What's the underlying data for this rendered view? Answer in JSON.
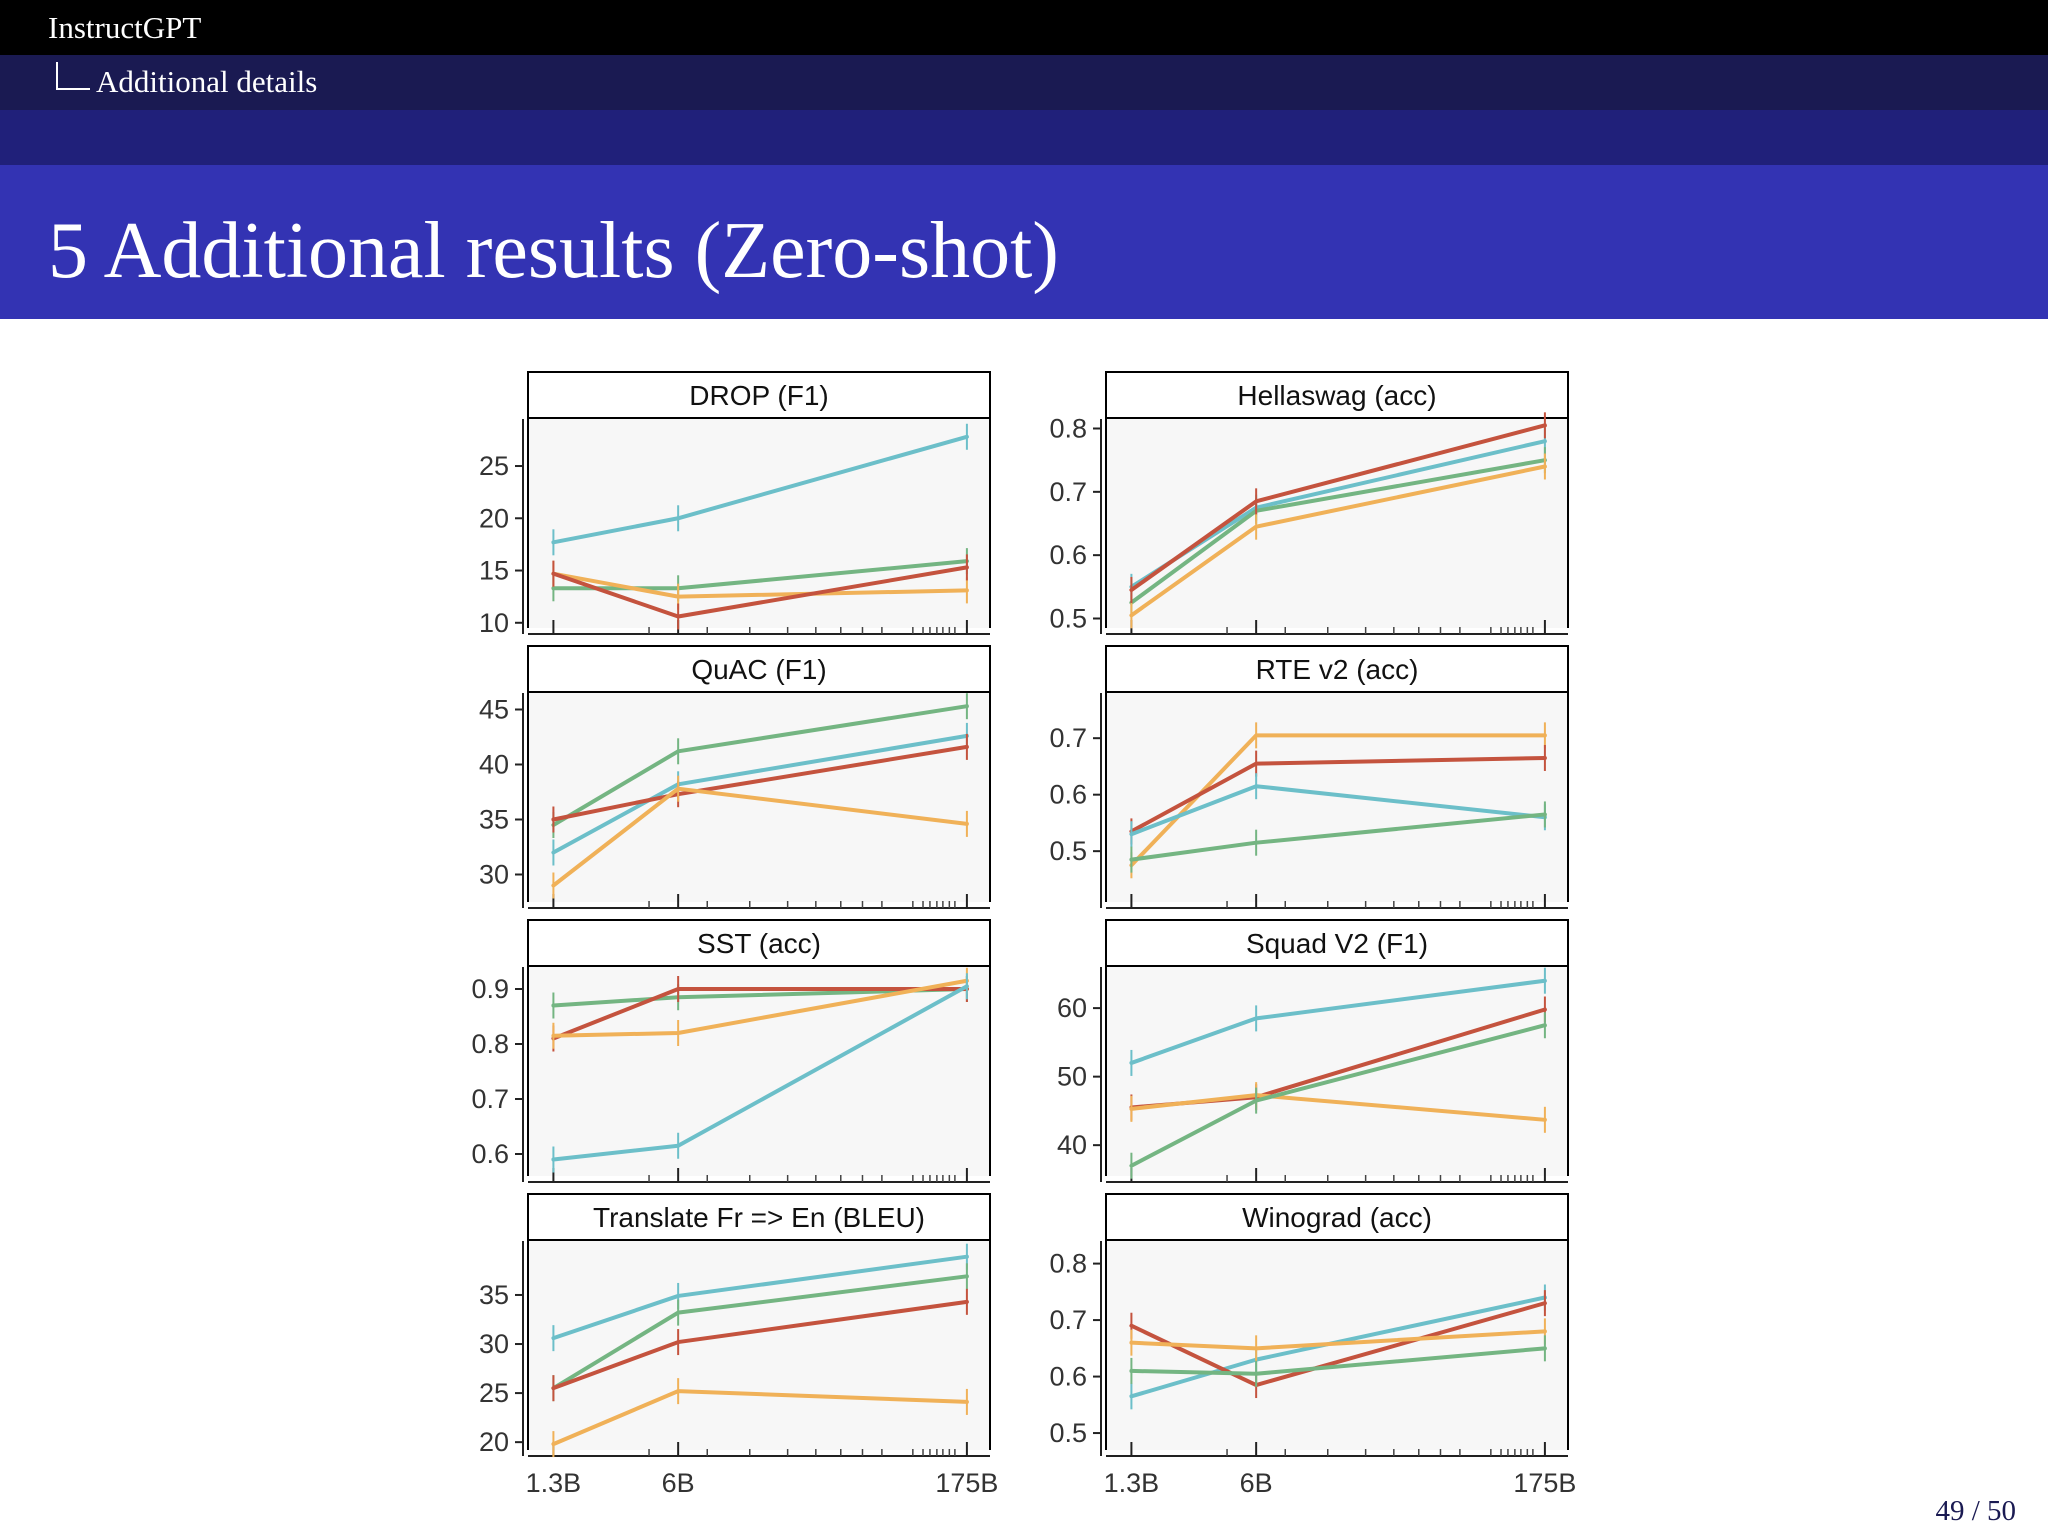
{
  "header": {
    "presentation_title": "InstructGPT",
    "section": "Additional details"
  },
  "frame_title": "5 Additional results (Zero-shot)",
  "page_number": "49 / 50",
  "colors": {
    "red": "#c4533e",
    "blue": "#6cbfc9",
    "green": "#74b582",
    "orange": "#f0b158"
  },
  "chart_data": [
    {
      "type": "line",
      "title": "DROP (F1)",
      "x": [
        "1.3B",
        "6B",
        "175B"
      ],
      "xscale": "log",
      "ylim": [
        9.5,
        29.5
      ],
      "yticks": [
        10,
        15,
        20,
        25
      ],
      "series": [
        {
          "color": "blue",
          "values": [
            17.7,
            20.0,
            27.8
          ]
        },
        {
          "color": "green",
          "values": [
            13.3,
            13.3,
            15.9
          ]
        },
        {
          "color": "orange",
          "values": [
            14.7,
            12.5,
            13.1
          ]
        },
        {
          "color": "red",
          "values": [
            14.7,
            10.6,
            15.3
          ]
        }
      ]
    },
    {
      "type": "line",
      "title": "Hellaswag (acc)",
      "x": [
        "1.3B",
        "6B",
        "175B"
      ],
      "xscale": "log",
      "ylim": [
        0.485,
        0.815
      ],
      "yticks": [
        0.5,
        0.6,
        0.7,
        0.8
      ],
      "series": [
        {
          "color": "blue",
          "values": [
            0.55,
            0.675,
            0.78
          ]
        },
        {
          "color": "green",
          "values": [
            0.525,
            0.67,
            0.75
          ]
        },
        {
          "color": "orange",
          "values": [
            0.505,
            0.645,
            0.74
          ]
        },
        {
          "color": "red",
          "values": [
            0.545,
            0.685,
            0.805
          ]
        }
      ]
    },
    {
      "type": "line",
      "title": "QuAC (F1)",
      "x": [
        "1.3B",
        "6B",
        "175B"
      ],
      "xscale": "log",
      "ylim": [
        27.5,
        46.5
      ],
      "yticks": [
        30,
        35,
        40,
        45
      ],
      "series": [
        {
          "color": "green",
          "values": [
            34.5,
            41.2,
            45.3
          ]
        },
        {
          "color": "blue",
          "values": [
            32.0,
            38.2,
            42.6
          ]
        },
        {
          "color": "red",
          "values": [
            35.0,
            37.3,
            41.6
          ]
        },
        {
          "color": "orange",
          "values": [
            29.0,
            37.8,
            34.6
          ]
        }
      ]
    },
    {
      "type": "line",
      "title": "RTE v2 (acc)",
      "x": [
        "1.3B",
        "6B",
        "175B"
      ],
      "xscale": "log",
      "ylim": [
        0.41,
        0.78
      ],
      "yticks": [
        0.5,
        0.6,
        0.7
      ],
      "series": [
        {
          "color": "orange",
          "values": [
            0.475,
            0.705,
            0.705
          ]
        },
        {
          "color": "red",
          "values": [
            0.535,
            0.655,
            0.665
          ]
        },
        {
          "color": "blue",
          "values": [
            0.53,
            0.615,
            0.56
          ]
        },
        {
          "color": "green",
          "values": [
            0.485,
            0.515,
            0.565
          ]
        }
      ]
    },
    {
      "type": "line",
      "title": "SST (acc)",
      "x": [
        "1.3B",
        "6B",
        "175B"
      ],
      "xscale": "log",
      "ylim": [
        0.56,
        0.94
      ],
      "yticks": [
        0.6,
        0.7,
        0.8,
        0.9
      ],
      "series": [
        {
          "color": "green",
          "values": [
            0.87,
            0.885,
            0.9
          ]
        },
        {
          "color": "red",
          "values": [
            0.81,
            0.9,
            0.9
          ]
        },
        {
          "color": "orange",
          "values": [
            0.815,
            0.82,
            0.915
          ]
        },
        {
          "color": "blue",
          "values": [
            0.59,
            0.615,
            0.905
          ]
        }
      ]
    },
    {
      "type": "line",
      "title": "Squad V2 (F1)",
      "x": [
        "1.3B",
        "6B",
        "175B"
      ],
      "xscale": "log",
      "ylim": [
        35.5,
        66.0
      ],
      "yticks": [
        40,
        50,
        60
      ],
      "series": [
        {
          "color": "blue",
          "values": [
            52.0,
            58.5,
            64.0
          ]
        },
        {
          "color": "red",
          "values": [
            45.5,
            47.0,
            59.8
          ]
        },
        {
          "color": "orange",
          "values": [
            45.3,
            47.3,
            43.7
          ]
        },
        {
          "color": "green",
          "values": [
            37.0,
            46.5,
            57.5
          ]
        }
      ]
    },
    {
      "type": "line",
      "title": "Translate Fr => En (BLEU)",
      "x": [
        "1.3B",
        "6B",
        "175B"
      ],
      "xscale": "log",
      "ylim": [
        19.2,
        40.5
      ],
      "yticks": [
        20,
        25,
        30,
        35
      ],
      "series": [
        {
          "color": "blue",
          "values": [
            30.6,
            34.9,
            38.9
          ]
        },
        {
          "color": "green",
          "values": [
            25.5,
            33.2,
            36.9
          ]
        },
        {
          "color": "red",
          "values": [
            25.5,
            30.2,
            34.3
          ]
        },
        {
          "color": "orange",
          "values": [
            19.8,
            25.2,
            24.1
          ]
        }
      ]
    },
    {
      "type": "line",
      "title": "Winograd (acc)",
      "x": [
        "1.3B",
        "6B",
        "175B"
      ],
      "xscale": "log",
      "ylim": [
        0.47,
        0.84
      ],
      "yticks": [
        0.5,
        0.6,
        0.7,
        0.8
      ],
      "series": [
        {
          "color": "blue",
          "values": [
            0.565,
            0.63,
            0.74
          ]
        },
        {
          "color": "red",
          "values": [
            0.69,
            0.585,
            0.73
          ]
        },
        {
          "color": "orange",
          "values": [
            0.66,
            0.65,
            0.68
          ]
        },
        {
          "color": "green",
          "values": [
            0.61,
            0.605,
            0.65
          ]
        }
      ]
    }
  ]
}
